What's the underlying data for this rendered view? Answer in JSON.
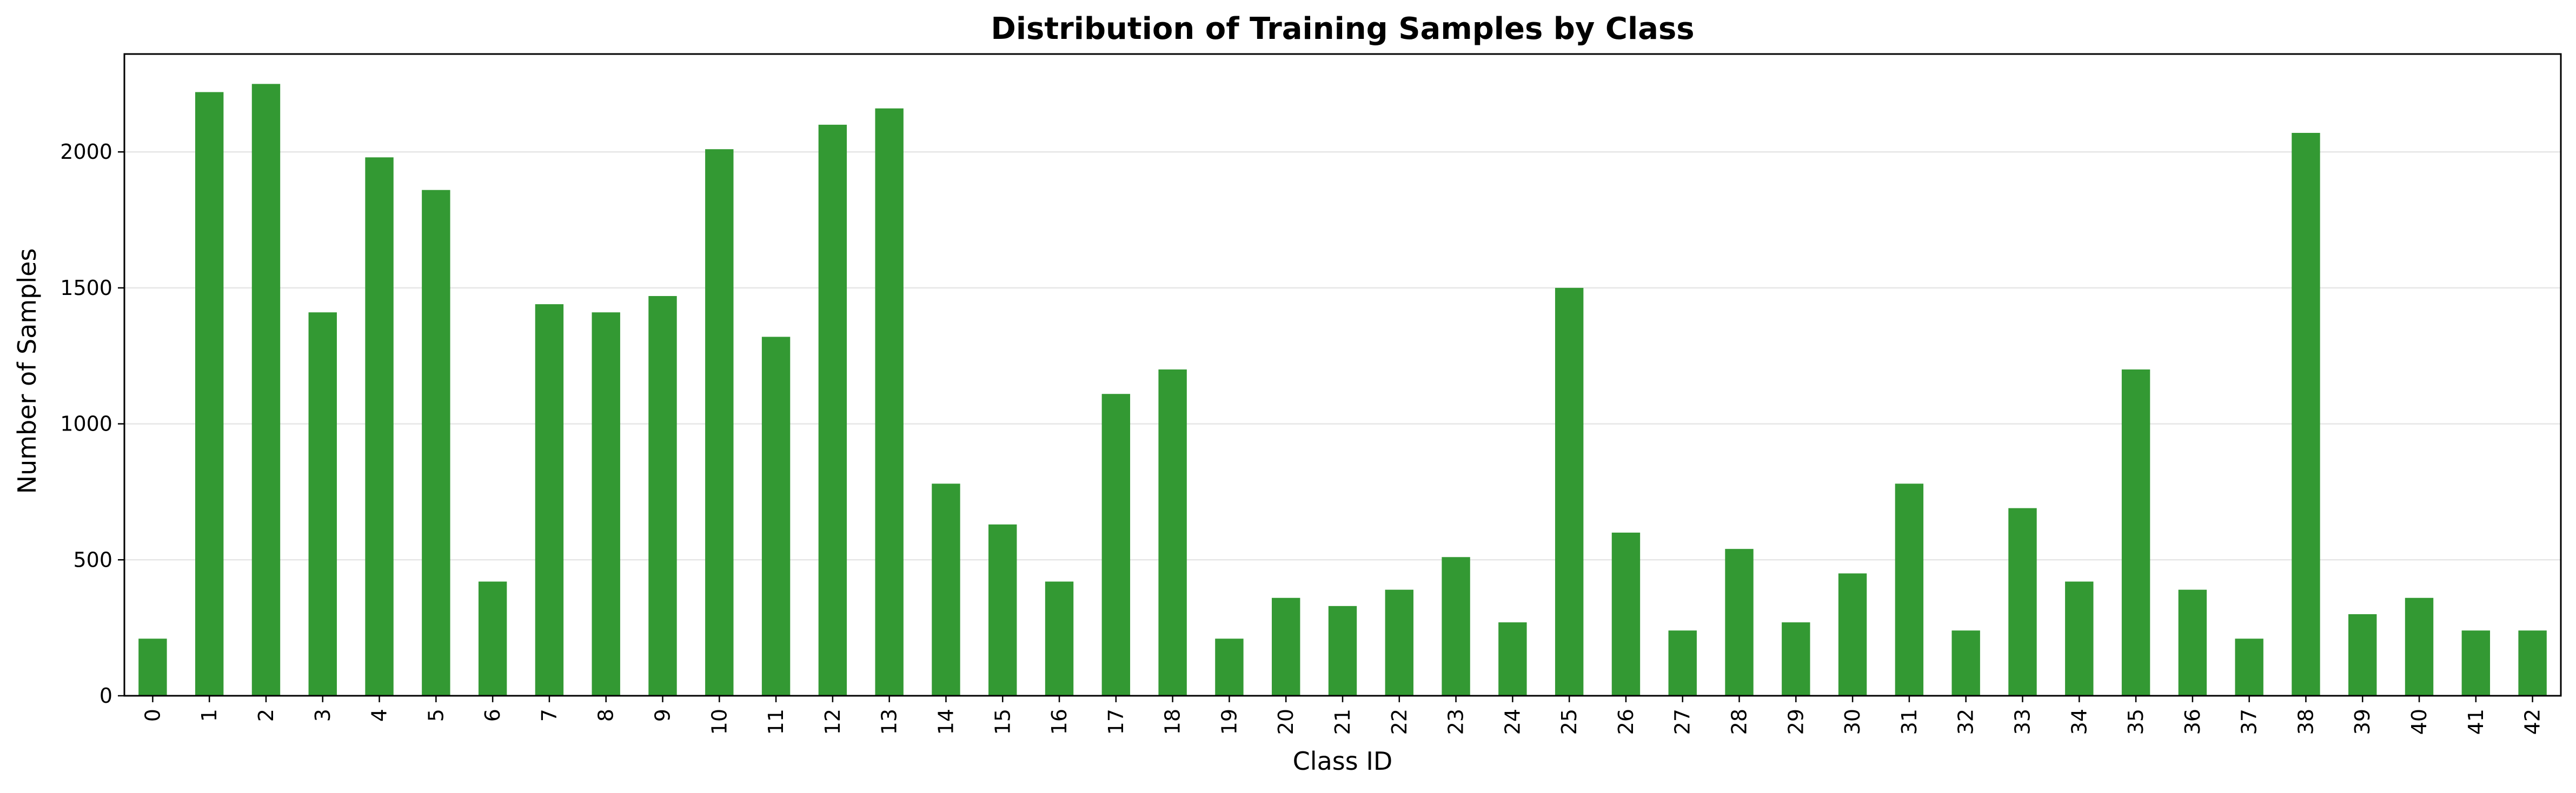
{
  "chart_data": {
    "type": "bar",
    "title": "Distribution of Training Samples by Class",
    "xlabel": "Class ID",
    "ylabel": "Number of Samples",
    "ylim": [
      0,
      2360
    ],
    "yticks": [
      0,
      500,
      1000,
      1500,
      2000
    ],
    "grid": "horizontal",
    "bar_color": "#339933",
    "categories": [
      "0",
      "1",
      "2",
      "3",
      "4",
      "5",
      "6",
      "7",
      "8",
      "9",
      "10",
      "11",
      "12",
      "13",
      "14",
      "15",
      "16",
      "17",
      "18",
      "19",
      "20",
      "21",
      "22",
      "23",
      "24",
      "25",
      "26",
      "27",
      "28",
      "29",
      "30",
      "31",
      "32",
      "33",
      "34",
      "35",
      "36",
      "37",
      "38",
      "39",
      "40",
      "41",
      "42"
    ],
    "values": [
      210,
      2220,
      2250,
      1410,
      1980,
      1860,
      420,
      1440,
      1410,
      1470,
      2010,
      1320,
      2100,
      2160,
      780,
      630,
      420,
      1110,
      1200,
      210,
      360,
      330,
      390,
      510,
      270,
      1500,
      600,
      240,
      540,
      270,
      450,
      780,
      240,
      690,
      420,
      1200,
      390,
      210,
      2070,
      300,
      360,
      240,
      240
    ]
  }
}
